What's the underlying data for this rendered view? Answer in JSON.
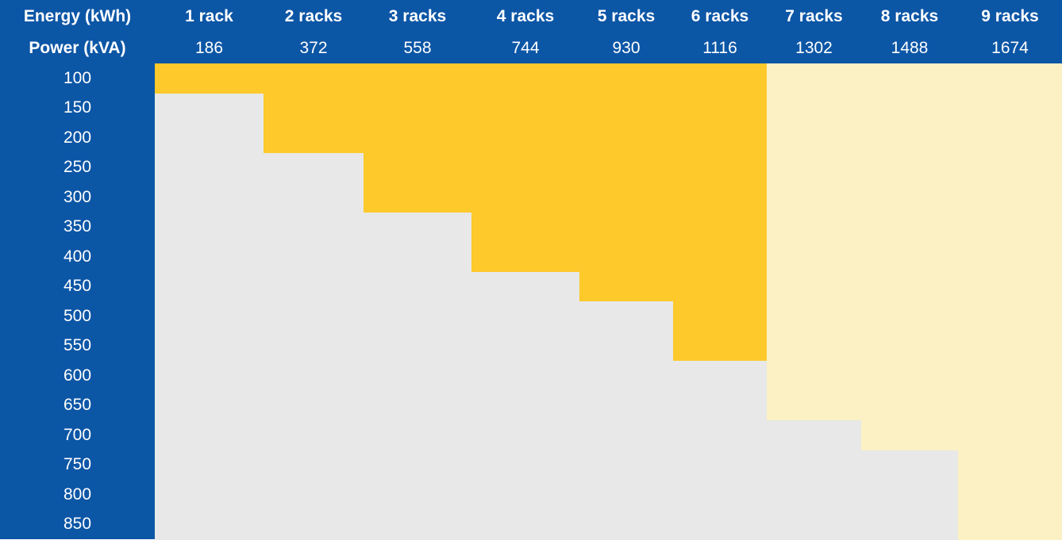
{
  "table": {
    "header": {
      "energy_label": "Energy (kWh)",
      "power_label": "Power (kVA)",
      "racks": [
        "1 rack",
        "2 racks",
        "3 racks",
        "4 racks",
        "5 racks",
        "6 racks",
        "7 racks",
        "8 racks",
        "9 racks"
      ],
      "power": [
        186,
        372,
        558,
        744,
        930,
        1116,
        1302,
        1488,
        1674
      ]
    },
    "rows": [
      {
        "energy": 100,
        "colors": [
          "#fdc92b",
          "#fdc92b",
          "#fdc92b",
          "#fdc92b",
          "#fdc92b",
          "#fdc92b",
          "#fbf1c5",
          "#fbf1c5",
          "#fbf1c5"
        ]
      },
      {
        "energy": 150,
        "colors": [
          "#e7e8e7",
          "#fdc92b",
          "#fdc92b",
          "#fdc92b",
          "#fdc92b",
          "#fdc92b",
          "#fbf1c5",
          "#fbf1c5",
          "#fbf1c5"
        ]
      },
      {
        "energy": 200,
        "colors": [
          "#e7e8e7",
          "#fdc92b",
          "#fdc92b",
          "#fdc92b",
          "#fdc92b",
          "#fdc92b",
          "#fbf1c5",
          "#fbf1c5",
          "#fbf1c5"
        ]
      },
      {
        "energy": 250,
        "colors": [
          "#e7e8e7",
          "#e7e8e7",
          "#fdc92b",
          "#fdc92b",
          "#fdc92b",
          "#fdc92b",
          "#fbf1c5",
          "#fbf1c5",
          "#fbf1c5"
        ]
      },
      {
        "energy": 300,
        "colors": [
          "#e7e8e7",
          "#e7e8e7",
          "#fdc92b",
          "#fdc92b",
          "#fdc92b",
          "#fdc92b",
          "#fbf1c5",
          "#fbf1c5",
          "#fbf1c5"
        ]
      },
      {
        "energy": 350,
        "colors": [
          "#e7e8e7",
          "#e7e8e7",
          "#e7e8e7",
          "#fdc92b",
          "#fdc92b",
          "#fdc92b",
          "#fbf1c5",
          "#fbf1c5",
          "#fbf1c5"
        ]
      },
      {
        "energy": 400,
        "colors": [
          "#e7e8e7",
          "#e7e8e7",
          "#e7e8e7",
          "#fdc92b",
          "#fdc92b",
          "#fdc92b",
          "#fbf1c5",
          "#fbf1c5",
          "#fbf1c5"
        ]
      },
      {
        "energy": 450,
        "colors": [
          "#e7e8e7",
          "#e7e8e7",
          "#e7e8e7",
          "#e7e8e7",
          "#fdc92b",
          "#fdc92b",
          "#fbf1c5",
          "#fbf1c5",
          "#fbf1c5"
        ]
      },
      {
        "energy": 500,
        "colors": [
          "#e7e8e7",
          "#e7e8e7",
          "#e7e8e7",
          "#e7e8e7",
          "#e7e8e7",
          "#fdc92b",
          "#fbf1c5",
          "#fbf1c5",
          "#fbf1c5"
        ]
      },
      {
        "energy": 550,
        "colors": [
          "#e7e8e7",
          "#e7e8e7",
          "#e7e8e7",
          "#e7e8e7",
          "#e7e8e7",
          "#fdc92b",
          "#fbf1c5",
          "#fbf1c5",
          "#fbf1c5"
        ]
      },
      {
        "energy": 600,
        "colors": [
          "#e7e8e7",
          "#e7e8e7",
          "#e7e8e7",
          "#e7e8e7",
          "#e7e8e7",
          "#e7e8e7",
          "#fbf1c5",
          "#fbf1c5",
          "#fbf1c5"
        ]
      },
      {
        "energy": 650,
        "colors": [
          "#e7e8e7",
          "#e7e8e7",
          "#e7e8e7",
          "#e7e8e7",
          "#e7e8e7",
          "#e7e8e7",
          "#fbf1c5",
          "#fbf1c5",
          "#fbf1c5"
        ]
      },
      {
        "energy": 700,
        "colors": [
          "#e7e8e7",
          "#e7e8e7",
          "#e7e8e7",
          "#e7e8e7",
          "#e7e8e7",
          "#e7e8e7",
          "#e7e8e7",
          "#fbf1c5",
          "#fbf1c5"
        ]
      },
      {
        "energy": 750,
        "colors": [
          "#e7e8e7",
          "#e7e8e7",
          "#e7e8e7",
          "#e7e8e7",
          "#e7e8e7",
          "#e7e8e7",
          "#e7e8e7",
          "#e7e8e7",
          "#fbf1c5"
        ]
      },
      {
        "energy": 800,
        "colors": [
          "#e7e8e7",
          "#e7e8e7",
          "#e7e8e7",
          "#e7e8e7",
          "#e7e8e7",
          "#e7e8e7",
          "#e7e8e7",
          "#e7e8e7",
          "#fbf1c5"
        ]
      },
      {
        "energy": 850,
        "colors": [
          "#e7e8e7",
          "#e7e8e7",
          "#e7e8e7",
          "#e7e8e7",
          "#e7e8e7",
          "#e7e8e7",
          "#e7e8e7",
          "#e7e8e7",
          "#fbf1c5"
        ]
      }
    ]
  }
}
